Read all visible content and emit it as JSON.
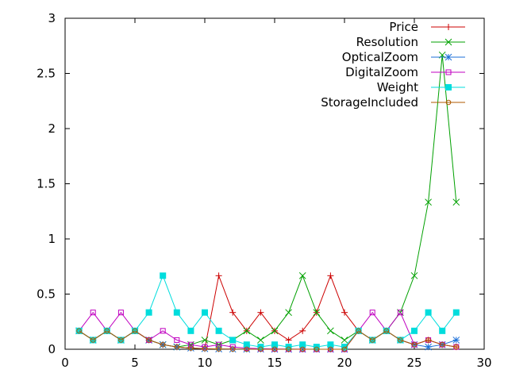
{
  "chart_data": {
    "type": "line",
    "title": "",
    "xlabel": "",
    "ylabel": "",
    "xlim": [
      0,
      30
    ],
    "ylim": [
      0,
      3
    ],
    "x_ticks": [
      0,
      5,
      10,
      15,
      20,
      25,
      30
    ],
    "y_ticks": [
      0,
      0.5,
      1,
      1.5,
      2,
      2.5,
      3
    ],
    "x_tick_labels": [
      "0",
      "5",
      "10",
      "15",
      "20",
      "25",
      "30"
    ],
    "y_tick_labels": [
      "0",
      "0.5",
      "1",
      "1.5",
      "2",
      "2.5",
      "3"
    ],
    "grid": false,
    "legend_position": "top-right",
    "x": [
      1,
      2,
      3,
      4,
      5,
      6,
      7,
      8,
      9,
      10,
      11,
      12,
      13,
      14,
      15,
      16,
      17,
      18,
      19,
      20,
      21,
      22,
      23,
      24,
      25,
      26,
      27,
      28
    ],
    "series": [
      {
        "name": "Price",
        "color": "#cc0000",
        "marker": "plus",
        "values": [
          0.1667,
          0.0833,
          0.1667,
          0.0833,
          0.1667,
          0.0833,
          0.0417,
          0.0208,
          0.0104,
          0.0052,
          0.6667,
          0.3333,
          0.1667,
          0.3333,
          0.1667,
          0.0833,
          0.1667,
          0.3333,
          0.6667,
          0.3333,
          0.1667,
          0.0833,
          0.1667,
          0.0833,
          0.0417,
          0.0833,
          0.0417,
          0.0208
        ]
      },
      {
        "name": "Resolution",
        "color": "#00a000",
        "marker": "cross",
        "values": [
          0.1667,
          0.0833,
          0.1667,
          0.0833,
          0.1667,
          0.0833,
          0.0417,
          0.0208,
          0.0417,
          0.0833,
          0.0417,
          0.0833,
          0.1667,
          0.0833,
          0.1667,
          0.3333,
          0.6667,
          0.3333,
          0.1667,
          0.0833,
          0.1667,
          0.0833,
          0.1667,
          0.3333,
          0.6667,
          1.3333,
          2.6667,
          1.3333
        ]
      },
      {
        "name": "OpticalZoom",
        "color": "#1b6fd8",
        "marker": "star",
        "values": [
          0.1667,
          0.0833,
          0.1667,
          0.0833,
          0.1667,
          0.0833,
          0.0417,
          0.0208,
          0.0104,
          0.0052,
          0.0026,
          0.0013,
          0.0007,
          0.0003,
          0.0002,
          0.0001,
          0.0,
          0.0,
          0.0,
          0.0,
          0.1667,
          0.0833,
          0.1667,
          0.0833,
          0.0417,
          0.0208,
          0.0417,
          0.0833
        ]
      },
      {
        "name": "DigitalZoom",
        "color": "#c000c0",
        "marker": "square-open",
        "values": [
          0.1667,
          0.3333,
          0.1667,
          0.3333,
          0.1667,
          0.0833,
          0.1667,
          0.0833,
          0.0417,
          0.0208,
          0.0417,
          0.0208,
          0.0104,
          0.0052,
          0.0026,
          0.0013,
          0.0007,
          0.0003,
          0.0002,
          0.0001,
          0.1667,
          0.3333,
          0.1667,
          0.3333,
          0.0417,
          0.0833,
          0.0417,
          0.0208
        ]
      },
      {
        "name": "Weight",
        "color": "#00dddd",
        "marker": "square-filled",
        "values": [
          0.1667,
          0.0833,
          0.1667,
          0.0833,
          0.1667,
          0.3333,
          0.6667,
          0.3333,
          0.1667,
          0.3333,
          0.1667,
          0.0833,
          0.0417,
          0.0208,
          0.0417,
          0.0208,
          0.0417,
          0.0208,
          0.0417,
          0.0208,
          0.1667,
          0.0833,
          0.1667,
          0.0833,
          0.1667,
          0.3333,
          0.1667,
          0.3333
        ]
      },
      {
        "name": "StorageIncluded",
        "color": "#b05a00",
        "marker": "circle",
        "values": [
          0.1667,
          0.0833,
          0.1667,
          0.0833,
          0.1667,
          0.0833,
          0.0417,
          0.0208,
          0.0104,
          0.0052,
          0.0026,
          0.0013,
          0.0007,
          0.0003,
          0.0002,
          0.0001,
          0.0,
          0.0,
          0.0,
          0.0,
          0.1667,
          0.0833,
          0.1667,
          0.0833,
          0.0417,
          0.0833,
          0.0417,
          0.0208
        ]
      }
    ]
  }
}
